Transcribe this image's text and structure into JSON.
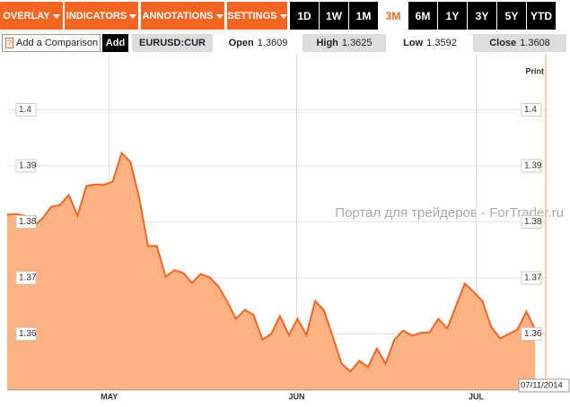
{
  "toolbar": {
    "menus": [
      "OVERLAY",
      "INDICATORS",
      "ANNOTATIONS",
      "SETTINGS"
    ],
    "ranges": [
      "1D",
      "1W",
      "1M",
      "3M",
      "6M",
      "1Y",
      "3Y",
      "5Y",
      "YTD"
    ],
    "active_range": 3
  },
  "comparison": {
    "help": "?",
    "placeholder": "Add a Comparison",
    "button": "Add"
  },
  "quote": {
    "symbol": "EURUSD:CUR",
    "fields": [
      {
        "label": "Open",
        "value": "1.3609"
      },
      {
        "label": "High",
        "value": "1.3625"
      },
      {
        "label": "Low",
        "value": "1.3592"
      },
      {
        "label": "Close",
        "value": "1.3608"
      }
    ]
  },
  "print": "Print",
  "date": "07/11/2014",
  "watermark": "Портал для трейдеров - ForTrader.ru",
  "chart_data": {
    "type": "area",
    "color": "#f26522",
    "fill": "#fdb284",
    "grid": true,
    "values": [
      1.3813,
      1.3814,
      1.3811,
      1.3792,
      1.3806,
      1.3827,
      1.383,
      1.3848,
      1.3811,
      1.3864,
      1.3867,
      1.3866,
      1.3872,
      1.3923,
      1.3907,
      1.3843,
      1.3757,
      1.3757,
      1.3702,
      1.3714,
      1.3709,
      1.3691,
      1.3707,
      1.3701,
      1.3685,
      1.3658,
      1.3627,
      1.3643,
      1.3634,
      1.359,
      1.36,
      1.3632,
      1.3598,
      1.3627,
      1.3598,
      1.3659,
      1.3642,
      1.3595,
      1.3547,
      1.3533,
      1.3552,
      1.3541,
      1.3574,
      1.3547,
      1.359,
      1.3606,
      1.3597,
      1.3602,
      1.3603,
      1.3627,
      1.361,
      1.365,
      1.369,
      1.3675,
      1.3659,
      1.3613,
      1.3592,
      1.36,
      1.3608,
      1.364,
      1.3608
    ],
    "xlim": [
      0,
      61.2
    ],
    "xticks": [
      {
        "value": 11.6,
        "label": "MAY"
      },
      {
        "value": 32.9,
        "label": "JUN"
      },
      {
        "value": 53.3,
        "label": "JUL"
      }
    ],
    "ylim": [
      1.35,
      1.41
    ],
    "yticks": [
      1.36,
      1.37,
      1.38,
      1.39,
      1.4
    ]
  }
}
